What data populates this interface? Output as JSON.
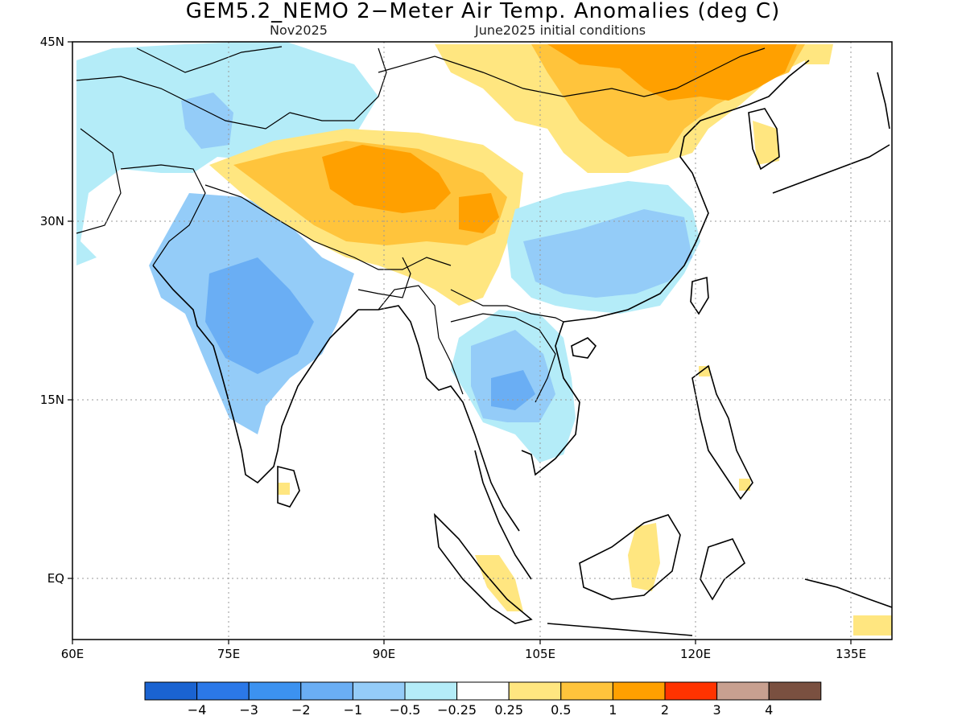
{
  "title": "GEM5.2_NEMO 2−Meter Air Temp. Anomalies (deg C)",
  "subtitle_left": "Nov2025",
  "subtitle_right": "June2025 initial conditions",
  "lat_labels": [
    "45N",
    "30N",
    "15N",
    "EQ"
  ],
  "lon_labels": [
    "60E",
    "75E",
    "90E",
    "105E",
    "120E",
    "135E"
  ],
  "legend": {
    "colors": [
      "#1a63d1",
      "#2b78e8",
      "#3c92f0",
      "#6aaef4",
      "#94ccf8",
      "#b4ecf8",
      "#ffffff",
      "#ffe680",
      "#ffc43c",
      "#ffa000",
      "#ff3300",
      "#c8a090",
      "#7a5040"
    ],
    "labels": [
      "−4",
      "−3",
      "−2",
      "−1",
      "−0.5",
      "−0.25",
      "0.25",
      "0.5",
      "1",
      "2",
      "3",
      "4"
    ]
  }
}
